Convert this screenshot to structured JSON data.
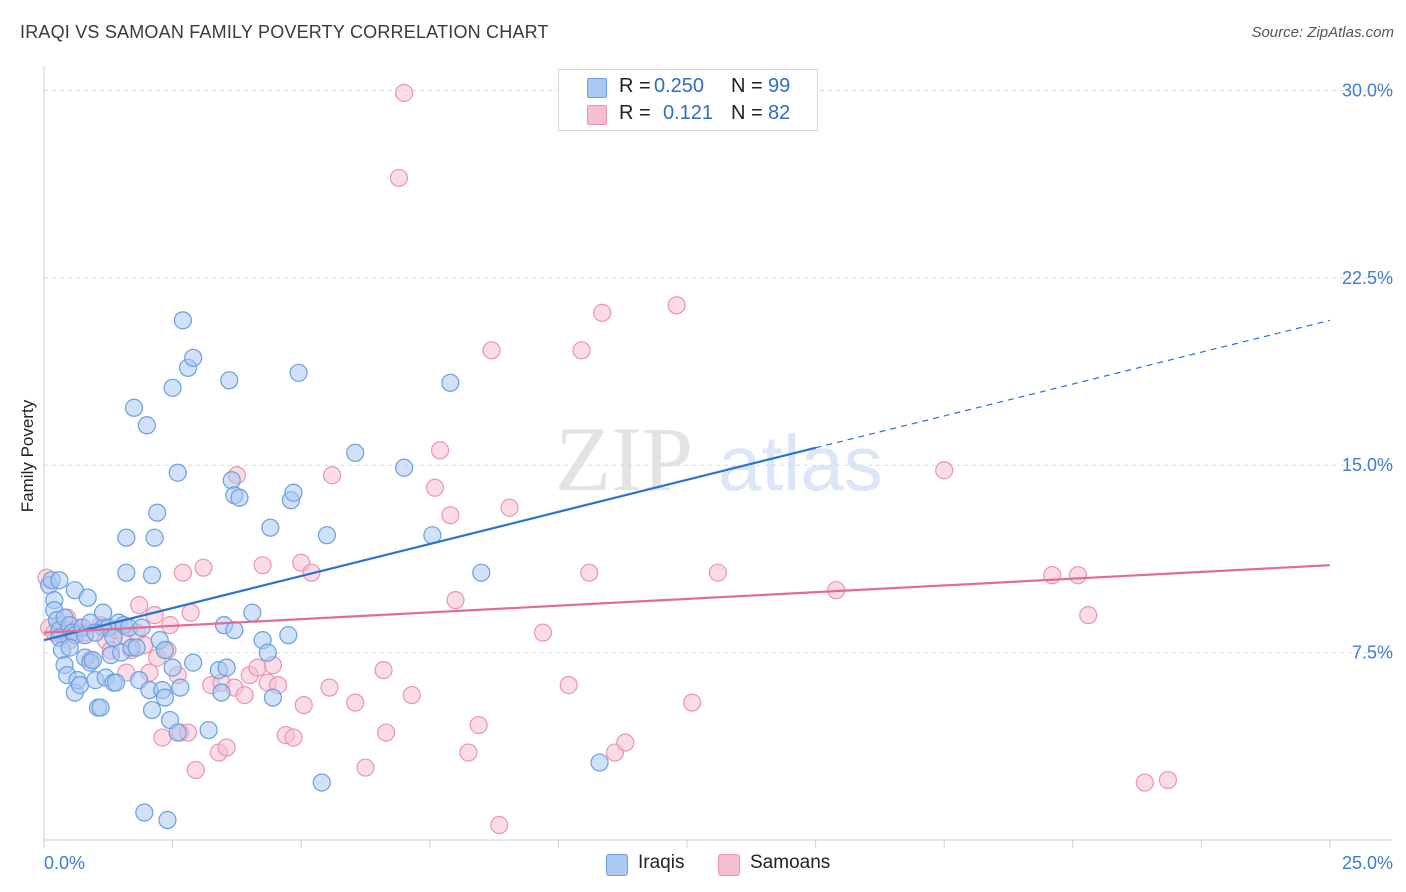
{
  "title": "IRAQI VS SAMOAN FAMILY POVERTY CORRELATION CHART",
  "source": "Source: ZipAtlas.com",
  "watermark": {
    "zip": "ZIP",
    "atlas": "atlas"
  },
  "legend_top": {
    "rows": [
      {
        "r_label": "R =",
        "r_value": "0.250",
        "n_label": "N =",
        "n_value": "99"
      },
      {
        "r_label": "R =",
        "r_value": "0.121",
        "n_label": "N =",
        "n_value": "82"
      }
    ]
  },
  "legend_bottom": {
    "items": [
      {
        "label": "Iraqis"
      },
      {
        "label": "Samoans"
      }
    ]
  },
  "colors": {
    "iraqi_fill": "#a9c9f3",
    "iraqi_stroke": "#6a9fe0",
    "iraqi_line": "#2a73cf",
    "samoan_fill": "#f6bfd1",
    "samoan_stroke": "#ec94b3",
    "samoan_line": "#e36a96",
    "tick_label": "#3f7dd1",
    "grid": "#d9d9d9"
  },
  "chart_data": {
    "type": "scatter",
    "title": "IRAQI VS SAMOAN FAMILY POVERTY CORRELATION CHART",
    "xlabel": "",
    "ylabel": "Family Poverty",
    "xlim": [
      0,
      25
    ],
    "ylim": [
      0,
      30.5
    ],
    "x_tick_labels": [
      "0.0%",
      "25.0%"
    ],
    "y_ticks": [
      7.5,
      15.0,
      22.5,
      30.0
    ],
    "y_tick_labels": [
      "7.5%",
      "15.0%",
      "22.5%",
      "30.0%"
    ],
    "grid": true,
    "legend": "top-center",
    "series": [
      {
        "name": "Iraqis",
        "r": 0.25,
        "n": 99,
        "trend": {
          "x0": 0.0,
          "y0": 8.0,
          "x1": 15.0,
          "y1": 15.7,
          "dash_to_x": 25.0,
          "dash_to_y": 20.8
        },
        "points": [
          [
            0.1,
            10.2
          ],
          [
            0.15,
            10.4
          ],
          [
            0.2,
            9.6
          ],
          [
            0.2,
            9.2
          ],
          [
            0.25,
            8.8
          ],
          [
            0.3,
            8.4
          ],
          [
            0.3,
            8.1
          ],
          [
            0.35,
            7.6
          ],
          [
            0.4,
            7.0
          ],
          [
            0.4,
            8.9
          ],
          [
            0.45,
            6.6
          ],
          [
            0.5,
            8.6
          ],
          [
            0.55,
            8.3
          ],
          [
            0.6,
            5.9
          ],
          [
            0.6,
            10.0
          ],
          [
            0.6,
            8.2
          ],
          [
            0.65,
            6.4
          ],
          [
            0.7,
            6.2
          ],
          [
            0.75,
            8.5
          ],
          [
            0.8,
            8.2
          ],
          [
            0.8,
            7.3
          ],
          [
            0.85,
            9.7
          ],
          [
            0.9,
            8.7
          ],
          [
            0.9,
            7.1
          ],
          [
            0.95,
            7.2
          ],
          [
            1.0,
            6.4
          ],
          [
            1.05,
            5.3
          ],
          [
            1.1,
            5.3
          ],
          [
            1.15,
            8.5
          ],
          [
            1.15,
            9.1
          ],
          [
            1.2,
            6.5
          ],
          [
            1.25,
            8.5
          ],
          [
            1.3,
            7.4
          ],
          [
            1.35,
            6.3
          ],
          [
            1.4,
            6.3
          ],
          [
            1.45,
            8.7
          ],
          [
            1.5,
            7.5
          ],
          [
            1.55,
            8.6
          ],
          [
            1.6,
            10.7
          ],
          [
            1.6,
            12.1
          ],
          [
            1.65,
            8.5
          ],
          [
            1.7,
            7.7
          ],
          [
            1.75,
            17.3
          ],
          [
            1.8,
            7.7
          ],
          [
            1.85,
            6.4
          ],
          [
            1.9,
            8.5
          ],
          [
            1.95,
            1.1
          ],
          [
            2.0,
            16.6
          ],
          [
            2.05,
            6.0
          ],
          [
            2.1,
            5.2
          ],
          [
            2.1,
            10.6
          ],
          [
            2.15,
            12.1
          ],
          [
            2.2,
            13.1
          ],
          [
            2.25,
            8.0
          ],
          [
            2.3,
            6.0
          ],
          [
            2.35,
            7.6
          ],
          [
            2.35,
            5.7
          ],
          [
            2.4,
            0.8
          ],
          [
            2.45,
            4.8
          ],
          [
            2.5,
            6.9
          ],
          [
            2.5,
            18.1
          ],
          [
            2.6,
            4.3
          ],
          [
            2.6,
            14.7
          ],
          [
            2.65,
            6.1
          ],
          [
            2.7,
            20.8
          ],
          [
            2.8,
            18.9
          ],
          [
            2.9,
            19.3
          ],
          [
            3.2,
            4.4
          ],
          [
            3.4,
            6.8
          ],
          [
            3.45,
            5.9
          ],
          [
            3.5,
            8.6
          ],
          [
            3.55,
            6.9
          ],
          [
            3.6,
            18.4
          ],
          [
            3.65,
            14.4
          ],
          [
            3.7,
            13.8
          ],
          [
            3.8,
            13.7
          ],
          [
            4.05,
            9.1
          ],
          [
            4.25,
            8.0
          ],
          [
            4.35,
            7.5
          ],
          [
            4.45,
            5.7
          ],
          [
            4.4,
            12.5
          ],
          [
            4.75,
            8.2
          ],
          [
            4.8,
            13.6
          ],
          [
            4.85,
            13.9
          ],
          [
            4.95,
            18.7
          ],
          [
            5.4,
            2.3
          ],
          [
            5.5,
            12.2
          ],
          [
            6.05,
            15.5
          ],
          [
            7.0,
            14.9
          ],
          [
            7.55,
            12.2
          ],
          [
            7.9,
            18.3
          ],
          [
            8.5,
            10.7
          ],
          [
            10.8,
            3.1
          ],
          [
            0.3,
            10.4
          ],
          [
            0.5,
            7.7
          ],
          [
            1.0,
            8.3
          ],
          [
            1.35,
            8.1
          ],
          [
            2.9,
            7.1
          ],
          [
            3.7,
            8.4
          ]
        ]
      },
      {
        "name": "Samoans",
        "r": 0.121,
        "n": 82,
        "trend": {
          "x0": 0.0,
          "y0": 8.3,
          "x1": 25.0,
          "y1": 11.0
        },
        "points": [
          [
            0.05,
            10.5
          ],
          [
            0.1,
            8.5
          ],
          [
            0.2,
            8.3
          ],
          [
            0.3,
            8.6
          ],
          [
            0.35,
            8.2
          ],
          [
            0.45,
            8.9
          ],
          [
            0.5,
            8.0
          ],
          [
            0.6,
            8.4
          ],
          [
            0.7,
            8.5
          ],
          [
            0.8,
            8.3
          ],
          [
            0.9,
            7.2
          ],
          [
            1.1,
            8.6
          ],
          [
            1.2,
            8.0
          ],
          [
            1.3,
            7.6
          ],
          [
            1.4,
            8.4
          ],
          [
            1.55,
            8.2
          ],
          [
            1.6,
            6.7
          ],
          [
            1.7,
            7.6
          ],
          [
            1.8,
            8.3
          ],
          [
            1.85,
            9.4
          ],
          [
            1.95,
            7.8
          ],
          [
            2.05,
            6.7
          ],
          [
            2.15,
            9.0
          ],
          [
            2.2,
            7.3
          ],
          [
            2.3,
            4.1
          ],
          [
            2.4,
            7.6
          ],
          [
            2.45,
            8.6
          ],
          [
            2.6,
            6.6
          ],
          [
            2.65,
            4.3
          ],
          [
            2.7,
            10.7
          ],
          [
            2.8,
            4.3
          ],
          [
            2.85,
            9.1
          ],
          [
            2.95,
            2.8
          ],
          [
            3.1,
            10.9
          ],
          [
            3.25,
            6.2
          ],
          [
            3.4,
            3.5
          ],
          [
            3.45,
            6.3
          ],
          [
            3.55,
            3.7
          ],
          [
            3.7,
            6.1
          ],
          [
            3.75,
            14.6
          ],
          [
            3.9,
            5.8
          ],
          [
            4.0,
            6.6
          ],
          [
            4.15,
            6.9
          ],
          [
            4.25,
            11.0
          ],
          [
            4.35,
            6.3
          ],
          [
            4.45,
            7.0
          ],
          [
            4.55,
            6.2
          ],
          [
            4.7,
            4.2
          ],
          [
            4.85,
            4.1
          ],
          [
            5.0,
            11.1
          ],
          [
            5.05,
            5.4
          ],
          [
            5.2,
            10.7
          ],
          [
            5.55,
            6.1
          ],
          [
            5.6,
            14.6
          ],
          [
            6.05,
            5.5
          ],
          [
            6.25,
            2.9
          ],
          [
            6.6,
            6.8
          ],
          [
            6.65,
            4.3
          ],
          [
            6.9,
            26.5
          ],
          [
            7.0,
            29.9
          ],
          [
            7.15,
            5.8
          ],
          [
            7.6,
            14.1
          ],
          [
            7.7,
            15.6
          ],
          [
            7.9,
            13.0
          ],
          [
            8.0,
            9.6
          ],
          [
            8.25,
            3.5
          ],
          [
            8.45,
            4.6
          ],
          [
            8.7,
            19.6
          ],
          [
            8.85,
            0.6
          ],
          [
            9.05,
            13.3
          ],
          [
            9.7,
            8.3
          ],
          [
            10.2,
            6.2
          ],
          [
            10.45,
            19.6
          ],
          [
            10.6,
            10.7
          ],
          [
            10.85,
            21.1
          ],
          [
            11.1,
            3.5
          ],
          [
            11.3,
            3.9
          ],
          [
            12.3,
            21.4
          ],
          [
            12.6,
            5.5
          ],
          [
            13.1,
            10.7
          ],
          [
            15.4,
            10.0
          ],
          [
            17.5,
            14.8
          ]
        ]
      }
    ],
    "extra_points_samoan": [
      [
        19.6,
        10.6
      ],
      [
        20.1,
        10.6
      ],
      [
        20.3,
        9.0
      ],
      [
        21.4,
        2.3
      ],
      [
        21.85,
        2.4
      ]
    ]
  }
}
